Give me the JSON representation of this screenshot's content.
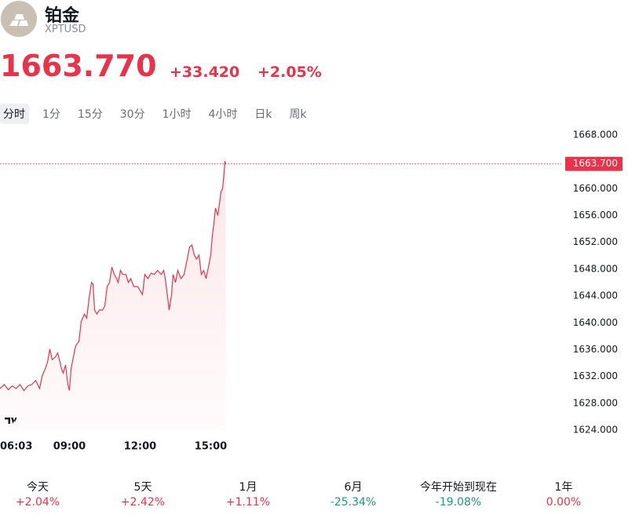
{
  "header": {
    "title": "铂金",
    "symbol": "XPTUSD",
    "price": "1663.770",
    "change": "+33.420",
    "change_percent": "+2.05%"
  },
  "tabs": [
    {
      "label": "分时",
      "selected": true
    },
    {
      "label": "1分",
      "selected": false
    },
    {
      "label": "15分",
      "selected": false
    },
    {
      "label": "30分",
      "selected": false
    },
    {
      "label": "1小时",
      "selected": false
    },
    {
      "label": "4小时",
      "selected": false
    },
    {
      "label": "日k",
      "selected": false
    },
    {
      "label": "周k",
      "selected": false
    }
  ],
  "chart_data": {
    "type": "area",
    "color": "#e8334a",
    "grid": false,
    "x": [
      363,
      374,
      384,
      394,
      404,
      414,
      424,
      434,
      444,
      454,
      464,
      470,
      478,
      484,
      490,
      496,
      504,
      510,
      516,
      520,
      524,
      530,
      536,
      540,
      544,
      550,
      556,
      564,
      570,
      578,
      584,
      590,
      596,
      600,
      604,
      610,
      616,
      624,
      630,
      636,
      642,
      648,
      654,
      660,
      664,
      670,
      676,
      684,
      690,
      696,
      704,
      714,
      720,
      726,
      732,
      740,
      748,
      756,
      764,
      774,
      780,
      784,
      788,
      794,
      800,
      804,
      810,
      816,
      824,
      832,
      840,
      846,
      852,
      858,
      864,
      870,
      876,
      882,
      888,
      894,
      900,
      904,
      908,
      912,
      918,
      922,
      926,
      930,
      934,
      936,
      938
    ],
    "values": [
      1630.2,
      1630.8,
      1630.0,
      1630.6,
      1630.2,
      1630.8,
      1629.9,
      1630.6,
      1630.8,
      1631.4,
      1630.2,
      1632.0,
      1633.1,
      1634.1,
      1636.1,
      1634.5,
      1634.9,
      1635.5,
      1634.1,
      1633.1,
      1632.5,
      1633.7,
      1630.8,
      1629.9,
      1633.1,
      1634.9,
      1636.6,
      1637.2,
      1640.2,
      1641.3,
      1640.7,
      1643.7,
      1646.0,
      1645.8,
      1641.9,
      1641.3,
      1641.9,
      1641.9,
      1642.5,
      1645.4,
      1646.0,
      1648.3,
      1647.2,
      1646.6,
      1646.0,
      1647.8,
      1647.2,
      1647.2,
      1646.0,
      1646.6,
      1645.4,
      1645.4,
      1644.8,
      1644.2,
      1647.2,
      1646.6,
      1647.4,
      1647.2,
      1647.8,
      1647.2,
      1647.8,
      1646.6,
      1644.8,
      1641.9,
      1644.2,
      1647.2,
      1646.0,
      1647.8,
      1646.6,
      1647.2,
      1649.5,
      1651.3,
      1651.6,
      1650.1,
      1649.5,
      1650.1,
      1647.2,
      1647.8,
      1646.6,
      1648.3,
      1650.1,
      1653.0,
      1654.8,
      1657.1,
      1656.0,
      1657.7,
      1659.5,
      1660.0,
      1662.4,
      1664.1,
      1663.7
    ],
    "xlim": [
      363,
      1793
    ],
    "xticks": [
      {
        "value": 363,
        "label": "06:03"
      },
      {
        "value": 540,
        "label": "09:00"
      },
      {
        "value": 720,
        "label": "12:00"
      },
      {
        "value": 900,
        "label": "15:00"
      }
    ],
    "ylim": [
      1624,
      1668
    ],
    "yticks": [
      {
        "value": 1624,
        "label": "1624.000"
      },
      {
        "value": 1628,
        "label": "1628.000"
      },
      {
        "value": 1632,
        "label": "1632.000"
      },
      {
        "value": 1636,
        "label": "1636.000"
      },
      {
        "value": 1640,
        "label": "1640.000"
      },
      {
        "value": 1644,
        "label": "1644.000"
      },
      {
        "value": 1648,
        "label": "1648.000"
      },
      {
        "value": 1652,
        "label": "1652.000"
      },
      {
        "value": 1656,
        "label": "1656.000"
      },
      {
        "value": 1660,
        "label": "1660.000"
      },
      {
        "value": 1664,
        "label": "1664.000"
      },
      {
        "value": 1668,
        "label": "1668.000"
      }
    ],
    "price_line": {
      "value": 1663.7,
      "label": "1663.700"
    }
  },
  "performance": [
    {
      "period": "今天",
      "change": "+2.04%",
      "color": "#e8334a"
    },
    {
      "period": "5天",
      "change": "+2.42%",
      "color": "#e8334a"
    },
    {
      "period": "1月",
      "change": "+1.11%",
      "color": "#e8334a"
    },
    {
      "period": "6月",
      "change": "-25.34%",
      "color": "#1a9b77"
    },
    {
      "period": "今年开始到现在",
      "change": "-19.08%",
      "color": "#1a9b77"
    },
    {
      "period": "1年",
      "change": "0.00%",
      "color": "#e8334a"
    }
  ]
}
